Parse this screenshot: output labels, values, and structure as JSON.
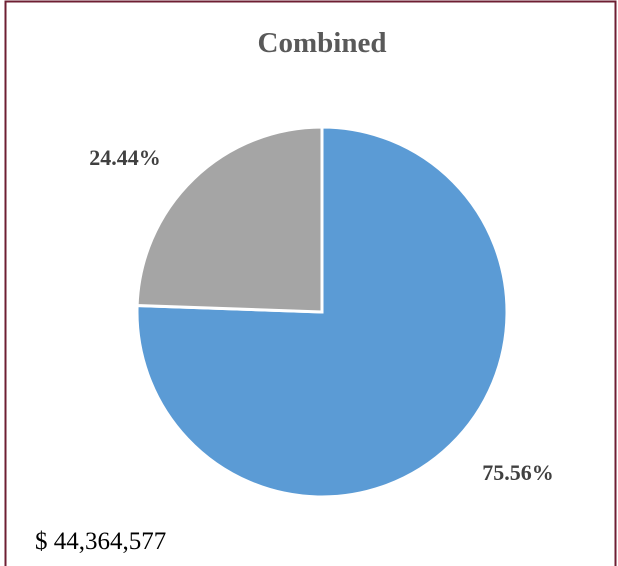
{
  "chart_data": {
    "type": "pie",
    "title": "Combined",
    "values": [
      75.56,
      24.44
    ],
    "value_labels": [
      "75.56%",
      "24.44%"
    ],
    "colors": [
      "#5b9bd5",
      "#a5a5a5"
    ]
  },
  "footer": "$ 44,364,577"
}
